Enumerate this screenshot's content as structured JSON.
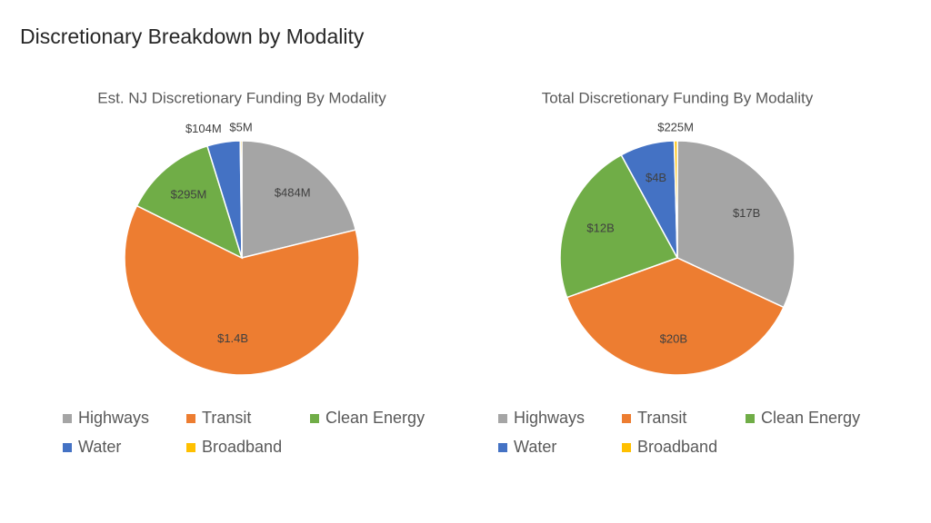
{
  "title": "Discretionary Breakdown by Modality",
  "chart_data": [
    {
      "type": "pie",
      "title": "Est. NJ Discretionary Funding By Modality",
      "categories": [
        "Highways",
        "Transit",
        "Clean Energy",
        "Water",
        "Broadband"
      ],
      "values": [
        484,
        1400,
        295,
        104,
        5
      ],
      "value_labels": [
        "$484M",
        "$1.4B",
        "$295M",
        "$104M",
        "$5M"
      ],
      "colors": [
        "#a5a5a5",
        "#ed7d31",
        "#70ad47",
        "#4472c4",
        "#ffc000"
      ]
    },
    {
      "type": "pie",
      "title": "Total Discretionary Funding By Modality",
      "categories": [
        "Highways",
        "Transit",
        "Clean Energy",
        "Water",
        "Broadband"
      ],
      "values": [
        17000,
        20000,
        12000,
        4000,
        225
      ],
      "value_labels": [
        "$17B",
        "$20B",
        "$12B",
        "$4B",
        "$225M"
      ],
      "colors": [
        "#a5a5a5",
        "#ed7d31",
        "#70ad47",
        "#4472c4",
        "#ffc000"
      ]
    }
  ]
}
